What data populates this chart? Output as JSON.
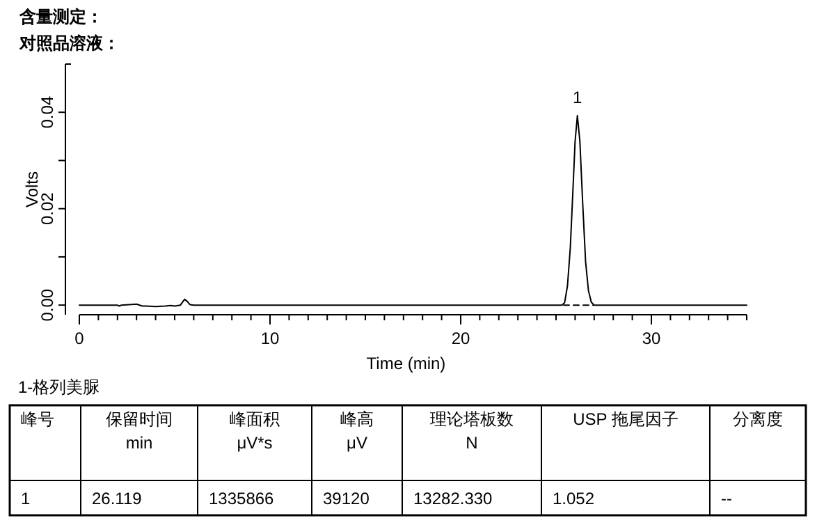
{
  "chart_data": {
    "type": "line",
    "title": "含量测定：",
    "subtitle": "对照品溶液：",
    "xlabel": "Time (min)",
    "ylabel": "Volts",
    "x": [
      0,
      2,
      2.1,
      2.2,
      3,
      3.3,
      3.5,
      4,
      4.5,
      4.8,
      5,
      5.3,
      5.52,
      5.65,
      5.8,
      6,
      10,
      20,
      25.3,
      25.45,
      25.6,
      25.75,
      25.9,
      26.0,
      26.12,
      26.25,
      26.4,
      26.55,
      26.7,
      26.85,
      27.0,
      30,
      35
    ],
    "series": [
      {
        "color": "#000000",
        "values": [
          0,
          0,
          -0.0002,
          0,
          0.0002,
          -0.0002,
          -0.0002,
          -0.0003,
          -0.0002,
          -0.0001,
          -0.0002,
          0,
          0.0012,
          0.0008,
          0.0001,
          0,
          0,
          0,
          0,
          0.0005,
          0.004,
          0.012,
          0.025,
          0.034,
          0.0393,
          0.034,
          0.021,
          0.009,
          0.003,
          0.0006,
          0,
          0,
          0
        ]
      },
      {
        "color": "#000000",
        "line_style": "dashed",
        "x": [
          25.4,
          26.95
        ],
        "values": [
          0,
          0
        ]
      }
    ],
    "xlim": [
      0,
      35
    ],
    "ylim": [
      -0.002,
      0.05
    ],
    "xticks": [
      0,
      {
        "value": 1,
        "label": null
      },
      {
        "value": 2,
        "label": null
      },
      {
        "value": 3,
        "label": null
      },
      {
        "value": 4,
        "label": null
      },
      {
        "value": 5,
        "label": null
      },
      {
        "value": 6,
        "label": null
      },
      {
        "value": 7,
        "label": null
      },
      {
        "value": 8,
        "label": null
      },
      {
        "value": 9,
        "label": null
      },
      10,
      {
        "value": 11,
        "label": null
      },
      {
        "value": 12,
        "label": null
      },
      {
        "value": 13,
        "label": null
      },
      {
        "value": 14,
        "label": null
      },
      {
        "value": 15,
        "label": null
      },
      {
        "value": 16,
        "label": null
      },
      {
        "value": 17,
        "label": null
      },
      {
        "value": 18,
        "label": null
      },
      {
        "value": 19,
        "label": null
      },
      20,
      {
        "value": 21,
        "label": null
      },
      {
        "value": 22,
        "label": null
      },
      {
        "value": 23,
        "label": null
      },
      {
        "value": 24,
        "label": null
      },
      {
        "value": 25,
        "label": null
      },
      {
        "value": 26,
        "label": null
      },
      {
        "value": 27,
        "label": null
      },
      {
        "value": 28,
        "label": null
      },
      {
        "value": 29,
        "label": null
      },
      30,
      {
        "value": 31,
        "label": null
      },
      {
        "value": 32,
        "label": null
      },
      {
        "value": 33,
        "label": null
      },
      {
        "value": 34,
        "label": null
      },
      {
        "value": 35,
        "label": null
      }
    ],
    "yticks": [
      {
        "value": 0,
        "label": "0.00"
      },
      {
        "value": 0.01,
        "label": null
      },
      {
        "value": 0.02,
        "label": "0.02"
      },
      {
        "value": 0.03,
        "label": null
      },
      {
        "value": 0.04,
        "label": "0.04"
      }
    ],
    "grid": false,
    "marker": "none",
    "line_style": "solid",
    "annotations": [
      {
        "text": "1",
        "x": 26.12,
        "y": 0.0393
      },
      "1-格列美脲",
      "峰号",
      "保留时间\nmin",
      "峰面积\nμV*s",
      "峰高\nμV",
      "理论塔板数\nN",
      "USP 拖尾因子",
      "分离度",
      "1",
      "26.119",
      "1335866",
      "39120",
      "13282.330",
      "1.052",
      "--"
    ]
  }
}
